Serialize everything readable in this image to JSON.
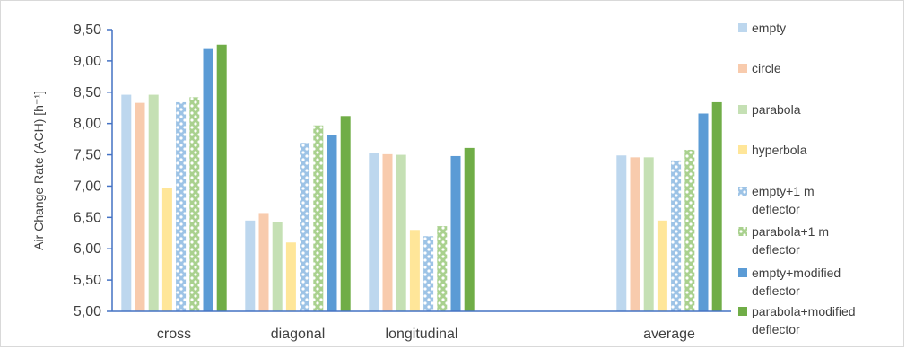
{
  "chart_data": {
    "type": "bar",
    "ylabel": "Air Change Rate (ACH) [h⁻¹]",
    "ylim": [
      5.0,
      9.5
    ],
    "yticks": [
      "9,50",
      "9,00",
      "8,50",
      "8,00",
      "7,50",
      "7,00",
      "6,50",
      "6,00",
      "5,50",
      "5,00"
    ],
    "categories": [
      "cross",
      "diagonal",
      "longitudinal",
      "",
      "average"
    ],
    "legend_position": "right",
    "grid": false,
    "series": [
      {
        "name": "empty",
        "color": "#bdd7ee",
        "pattern": "solid",
        "values": [
          8.46,
          6.45,
          7.53,
          null,
          7.49
        ]
      },
      {
        "name": "circle",
        "color": "#f8cbad",
        "pattern": "solid",
        "values": [
          8.33,
          6.57,
          7.51,
          null,
          7.46
        ]
      },
      {
        "name": "parabola",
        "color": "#c5e0b4",
        "pattern": "solid",
        "values": [
          8.46,
          6.43,
          7.5,
          null,
          7.46
        ]
      },
      {
        "name": "hyperbola",
        "color": "#ffe699",
        "pattern": "solid",
        "values": [
          6.97,
          6.1,
          6.3,
          null,
          6.45
        ]
      },
      {
        "name": "empty+1 m deflector",
        "color": "#9dc3e6",
        "pattern": "dots",
        "values": [
          8.34,
          7.69,
          6.2,
          null,
          7.41
        ]
      },
      {
        "name": "parabola+1 m deflector",
        "color": "#a9d18e",
        "pattern": "dots",
        "values": [
          8.42,
          7.97,
          6.36,
          null,
          7.58
        ]
      },
      {
        "name": "empty+modified deflector",
        "color": "#5b9bd5",
        "pattern": "solid",
        "values": [
          9.19,
          7.81,
          7.48,
          null,
          8.16
        ]
      },
      {
        "name": "parabola+modified deflector",
        "color": "#70ad47",
        "pattern": "solid",
        "values": [
          9.26,
          8.12,
          7.61,
          null,
          8.34
        ]
      }
    ]
  }
}
